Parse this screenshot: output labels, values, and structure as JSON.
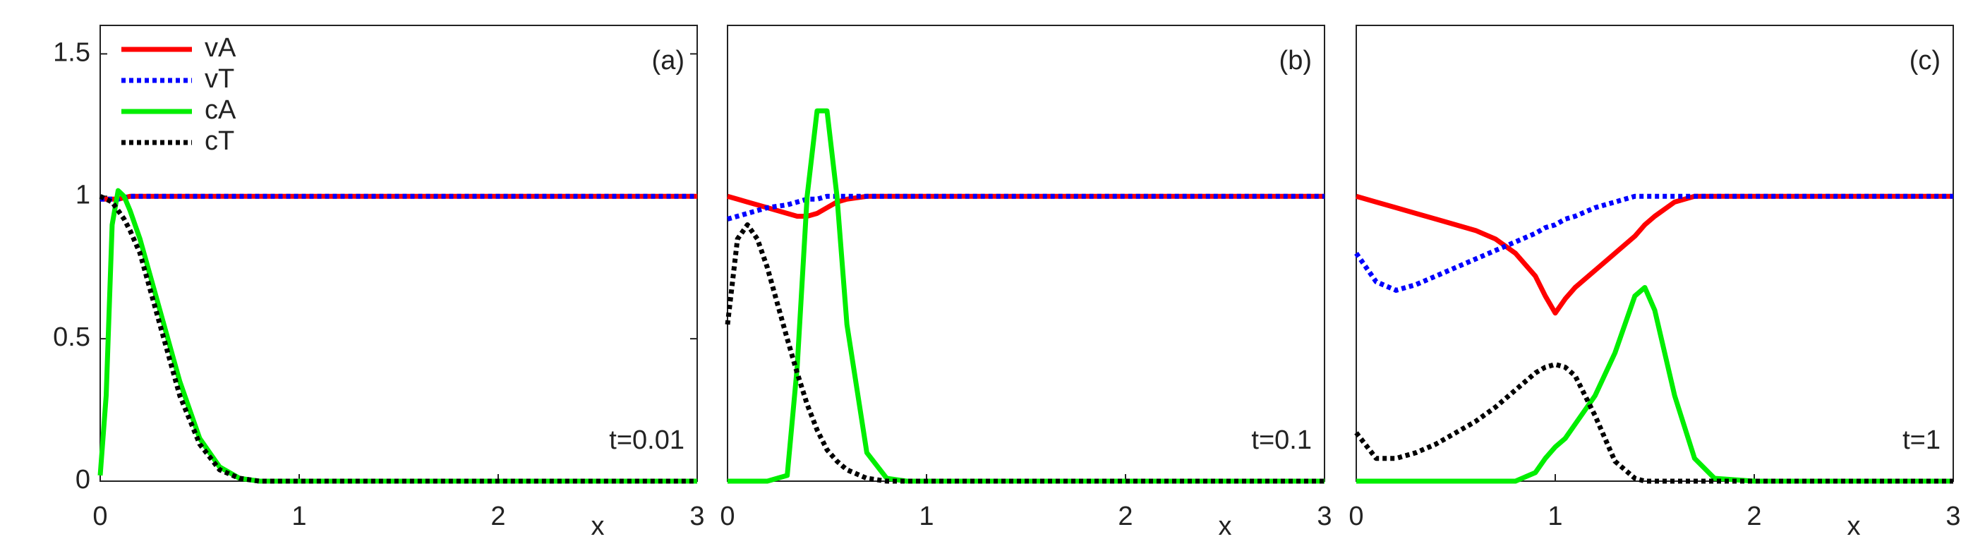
{
  "chart_data": [
    {
      "type": "line",
      "annotation": "(a)",
      "time_label": "t=0.01",
      "xlabel": "x",
      "xlim": [
        0,
        3
      ],
      "ylim": [
        0,
        1.6
      ],
      "xticks": [
        0,
        1,
        2,
        3
      ],
      "yticks": [
        0,
        0.5,
        1,
        1.5
      ],
      "legend": "upper left",
      "x": [
        0,
        0.03,
        0.06,
        0.09,
        0.12,
        0.15,
        0.2,
        0.3,
        0.4,
        0.5,
        0.6,
        0.7,
        0.8,
        1,
        1.5,
        2,
        2.5,
        3
      ],
      "series": [
        {
          "name": "vA",
          "color": "#ff0000",
          "dotted": false,
          "values": [
            0.99,
            0.99,
            0.99,
            0.99,
            0.995,
            1,
            1,
            1,
            1,
            1,
            1,
            1,
            1,
            1,
            1,
            1,
            1,
            1
          ]
        },
        {
          "name": "vT",
          "color": "#0000ff",
          "dotted": true,
          "values": [
            0.99,
            0.99,
            0.99,
            0.99,
            0.995,
            1,
            1,
            1,
            1,
            1,
            1,
            1,
            1,
            1,
            1,
            1,
            1,
            1
          ]
        },
        {
          "name": "cA",
          "color": "#00ee00",
          "dotted": false,
          "values": [
            0.02,
            0.3,
            0.9,
            1.02,
            1.0,
            0.95,
            0.85,
            0.6,
            0.35,
            0.15,
            0.05,
            0.01,
            0,
            0,
            0,
            0,
            0,
            0
          ]
        },
        {
          "name": "cT",
          "color": "#000000",
          "dotted": true,
          "values": [
            1.0,
            0.99,
            0.98,
            0.95,
            0.92,
            0.88,
            0.8,
            0.55,
            0.3,
            0.13,
            0.04,
            0.01,
            0,
            0,
            0,
            0,
            0,
            0
          ]
        }
      ]
    },
    {
      "type": "line",
      "annotation": "(b)",
      "time_label": "t=0.1",
      "xlabel": "x",
      "xlim": [
        0,
        3
      ],
      "ylim": [
        0,
        1.6
      ],
      "xticks": [
        0,
        1,
        2,
        3
      ],
      "x": [
        0,
        0.05,
        0.1,
        0.15,
        0.2,
        0.3,
        0.35,
        0.4,
        0.45,
        0.5,
        0.55,
        0.6,
        0.7,
        0.8,
        0.9,
        1,
        1.5,
        2,
        2.5,
        3
      ],
      "series": [
        {
          "color": "#ff0000",
          "dotted": false,
          "values": [
            1,
            0.99,
            0.98,
            0.97,
            0.96,
            0.94,
            0.93,
            0.93,
            0.94,
            0.96,
            0.98,
            0.99,
            1,
            1,
            1,
            1,
            1,
            1,
            1,
            1
          ]
        },
        {
          "color": "#0000ff",
          "dotted": true,
          "values": [
            0.92,
            0.93,
            0.94,
            0.95,
            0.96,
            0.97,
            0.98,
            0.99,
            0.99,
            1,
            1,
            1,
            1,
            1,
            1,
            1,
            1,
            1,
            1,
            1
          ]
        },
        {
          "color": "#00ee00",
          "dotted": false,
          "values": [
            0,
            0,
            0,
            0,
            0,
            0.02,
            0.4,
            1.0,
            1.3,
            1.3,
            1.0,
            0.55,
            0.1,
            0.01,
            0,
            0,
            0,
            0,
            0,
            0
          ]
        },
        {
          "color": "#000000",
          "dotted": true,
          "values": [
            0.55,
            0.85,
            0.9,
            0.85,
            0.75,
            0.5,
            0.38,
            0.27,
            0.18,
            0.11,
            0.07,
            0.04,
            0.01,
            0,
            0,
            0,
            0,
            0,
            0,
            0
          ]
        }
      ]
    },
    {
      "type": "line",
      "annotation": "(c)",
      "time_label": "t=1",
      "xlabel": "x",
      "xlim": [
        0,
        3
      ],
      "ylim": [
        0,
        1.6
      ],
      "xticks": [
        0,
        1,
        2,
        3
      ],
      "x": [
        0,
        0.1,
        0.2,
        0.3,
        0.4,
        0.5,
        0.6,
        0.7,
        0.8,
        0.9,
        0.95,
        1,
        1.05,
        1.1,
        1.2,
        1.3,
        1.4,
        1.45,
        1.5,
        1.6,
        1.7,
        1.8,
        2,
        2.5,
        3
      ],
      "series": [
        {
          "color": "#ff0000",
          "dotted": false,
          "values": [
            1,
            0.98,
            0.96,
            0.94,
            0.92,
            0.9,
            0.88,
            0.85,
            0.8,
            0.72,
            0.65,
            0.59,
            0.64,
            0.68,
            0.74,
            0.8,
            0.86,
            0.9,
            0.93,
            0.98,
            1,
            1,
            1,
            1,
            1
          ]
        },
        {
          "color": "#0000ff",
          "dotted": true,
          "values": [
            0.8,
            0.7,
            0.67,
            0.69,
            0.72,
            0.75,
            0.78,
            0.81,
            0.84,
            0.87,
            0.89,
            0.9,
            0.92,
            0.93,
            0.96,
            0.98,
            1,
            1,
            1,
            1,
            1,
            1,
            1,
            1,
            1
          ]
        },
        {
          "color": "#00ee00",
          "dotted": false,
          "values": [
            0,
            0,
            0,
            0,
            0,
            0,
            0,
            0,
            0,
            0.03,
            0.08,
            0.12,
            0.15,
            0.2,
            0.3,
            0.45,
            0.65,
            0.68,
            0.6,
            0.3,
            0.08,
            0.01,
            0,
            0,
            0
          ]
        },
        {
          "color": "#000000",
          "dotted": true,
          "values": [
            0.17,
            0.08,
            0.08,
            0.1,
            0.13,
            0.17,
            0.21,
            0.26,
            0.32,
            0.38,
            0.4,
            0.41,
            0.4,
            0.37,
            0.23,
            0.07,
            0.01,
            0,
            0,
            0,
            0,
            0,
            0,
            0,
            0
          ]
        }
      ]
    }
  ]
}
